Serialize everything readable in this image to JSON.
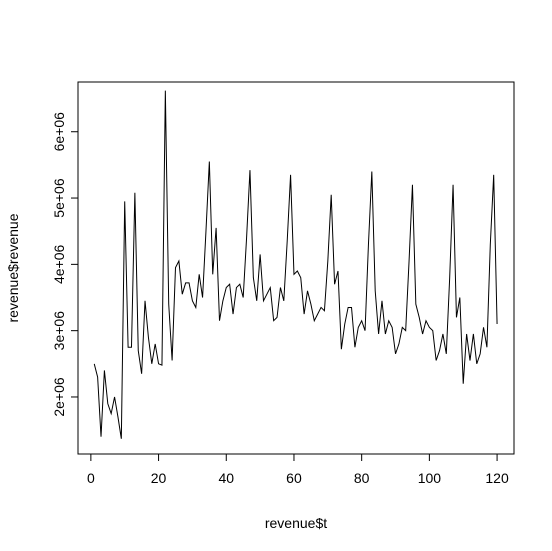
{
  "chart_data": {
    "type": "line",
    "xlabel": "revenue$t",
    "ylabel": "revenue$revenue",
    "color": "#000000",
    "x": [
      1,
      2,
      3,
      4,
      5,
      6,
      7,
      8,
      9,
      10,
      11,
      12,
      13,
      14,
      15,
      16,
      17,
      18,
      19,
      20,
      21,
      22,
      23,
      24,
      25,
      26,
      27,
      28,
      29,
      30,
      31,
      32,
      33,
      34,
      35,
      36,
      37,
      38,
      39,
      40,
      41,
      42,
      43,
      44,
      45,
      46,
      47,
      48,
      49,
      50,
      51,
      52,
      53,
      54,
      55,
      56,
      57,
      58,
      59,
      60,
      61,
      62,
      63,
      64,
      65,
      66,
      67,
      68,
      69,
      70,
      71,
      72,
      73,
      74,
      75,
      76,
      77,
      78,
      79,
      80,
      81,
      82,
      83,
      84,
      85,
      86,
      87,
      88,
      89,
      90,
      91,
      92,
      93,
      94,
      95,
      96,
      97,
      98,
      99,
      100,
      101,
      102,
      103,
      104,
      105,
      106,
      107,
      108,
      109,
      110,
      111,
      112,
      113,
      114,
      115,
      116,
      117,
      118,
      119,
      120
    ],
    "values": [
      2500000,
      2300000,
      1400000,
      2400000,
      1900000,
      1750000,
      2000000,
      1700000,
      1370000,
      4950000,
      2750000,
      2750000,
      5080000,
      2700000,
      2350000,
      3450000,
      2900000,
      2500000,
      2800000,
      2500000,
      2480000,
      6620000,
      3400000,
      2550000,
      3950000,
      4050000,
      3550000,
      3720000,
      3720000,
      3450000,
      3350000,
      3850000,
      3500000,
      4500000,
      5550000,
      3850000,
      4550000,
      3150000,
      3450000,
      3650000,
      3700000,
      3250000,
      3650000,
      3700000,
      3500000,
      4400000,
      5420000,
      3800000,
      3450000,
      4150000,
      3450000,
      3550000,
      3650000,
      3150000,
      3200000,
      3650000,
      3450000,
      4350000,
      5350000,
      3850000,
      3900000,
      3800000,
      3250000,
      3600000,
      3400000,
      3150000,
      3250000,
      3350000,
      3300000,
      4050000,
      5050000,
      3700000,
      3900000,
      2720000,
      3100000,
      3350000,
      3350000,
      2750000,
      3050000,
      3150000,
      3000000,
      4300000,
      5400000,
      3600000,
      2950000,
      3450000,
      2950000,
      3150000,
      3050000,
      2650000,
      2800000,
      3050000,
      3000000,
      4050000,
      5200000,
      3400000,
      3200000,
      2950000,
      3150000,
      3050000,
      3000000,
      2550000,
      2700000,
      2950000,
      2650000,
      3800000,
      5200000,
      3200000,
      3500000,
      2200000,
      2950000,
      2550000,
      2950000,
      2500000,
      2650000,
      3050000,
      2750000,
      4300000,
      5350000,
      3100000
    ],
    "xlim": [
      -3.8,
      125
    ],
    "ylim": [
      1140000,
      6750000
    ],
    "xticks": [
      0,
      20,
      40,
      60,
      80,
      100,
      120
    ],
    "yticks": [
      {
        "value": 2000000,
        "label": "2e+06"
      },
      {
        "value": 3000000,
        "label": "3e+06"
      },
      {
        "value": 4000000,
        "label": "4e+06"
      },
      {
        "value": 5000000,
        "label": "5e+06"
      },
      {
        "value": 6000000,
        "label": "6e+06"
      }
    ]
  }
}
